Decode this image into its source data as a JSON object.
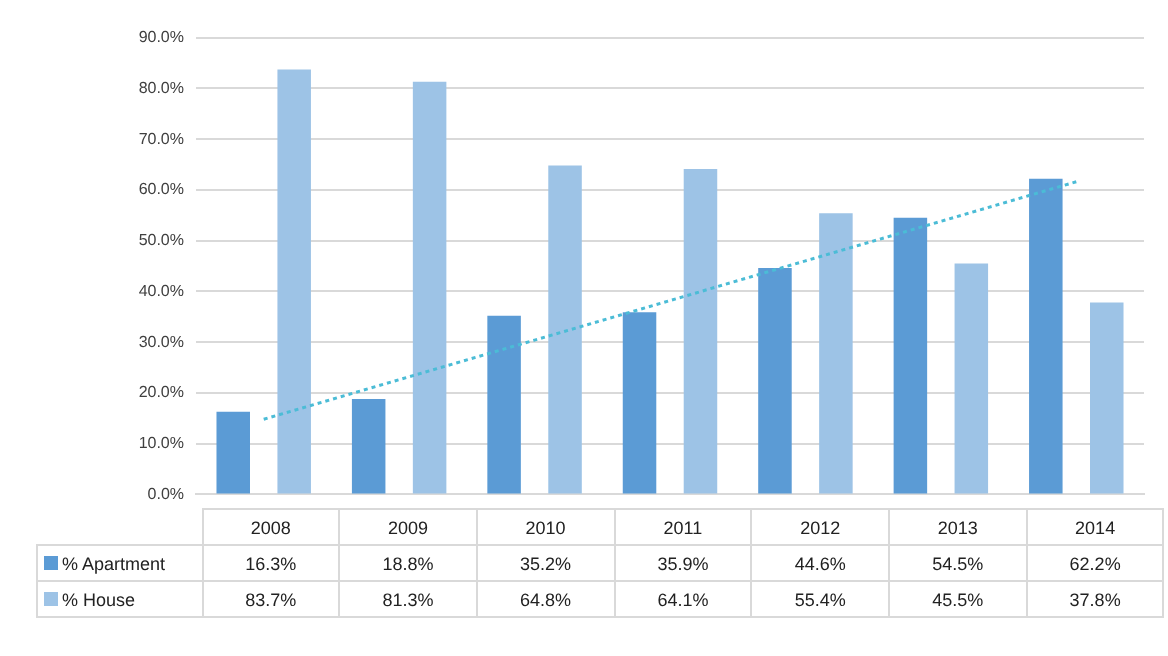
{
  "chart_data": {
    "type": "bar",
    "categories": [
      "2008",
      "2009",
      "2010",
      "2011",
      "2012",
      "2013",
      "2014"
    ],
    "series": [
      {
        "name": "% Apartment",
        "color": "#5b9bd5",
        "values": [
          16.3,
          18.8,
          35.2,
          35.9,
          44.6,
          54.5,
          62.2
        ]
      },
      {
        "name": "% House",
        "color": "#9dc3e6",
        "values": [
          83.7,
          81.3,
          64.8,
          64.1,
          55.4,
          45.5,
          37.8
        ]
      },
      {
        "type": "line",
        "color": "#4bbcd6",
        "line_style": "dotted",
        "marker": "none",
        "values": [
          14.8,
          22.6,
          30.4,
          38.2,
          46.0,
          53.8,
          61.6
        ]
      }
    ],
    "ylim": [
      0,
      90
    ],
    "yticks": [
      {
        "value": 0,
        "label": "0.0%"
      },
      {
        "value": 10,
        "label": "10.0%"
      },
      {
        "value": 20,
        "label": "20.0%"
      },
      {
        "value": 30,
        "label": "30.0%"
      },
      {
        "value": 40,
        "label": "40.0%"
      },
      {
        "value": 50,
        "label": "50.0%"
      },
      {
        "value": 60,
        "label": "60.0%"
      },
      {
        "value": 70,
        "label": "70.0%"
      },
      {
        "value": 80,
        "label": "80.0%"
      },
      {
        "value": 90,
        "label": "90.0%"
      }
    ],
    "value_labels": [
      [
        "16.3%",
        "18.8%",
        "35.2%",
        "35.9%",
        "44.6%",
        "54.5%",
        "62.2%"
      ],
      [
        "83.7%",
        "81.3%",
        "64.8%",
        "64.1%",
        "55.4%",
        "45.5%",
        "37.8%"
      ]
    ],
    "grid": "y",
    "legend": "bottom left",
    "tick_labels": "y"
  }
}
